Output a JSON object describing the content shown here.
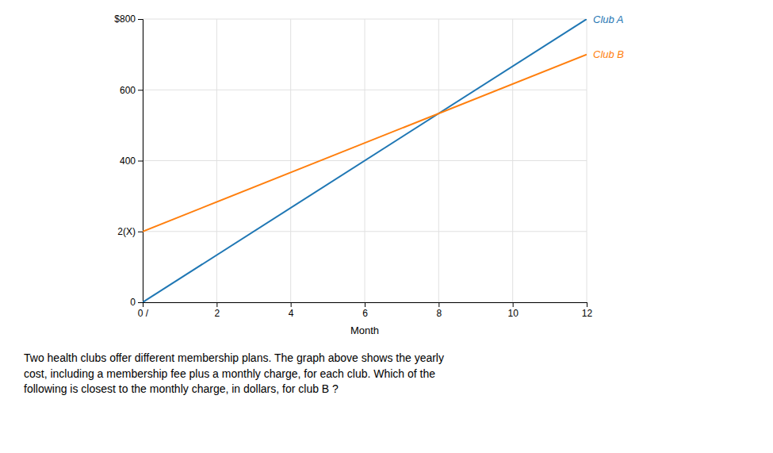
{
  "chart_data": {
    "type": "line",
    "xlabel": "Month",
    "x": [
      0,
      12
    ],
    "series": [
      {
        "name": "Club A",
        "values": [
          0,
          800
        ]
      },
      {
        "name": "Club B",
        "values": [
          200,
          700
        ]
      }
    ],
    "xlim": [
      0,
      12
    ],
    "ylim": [
      0,
      800
    ],
    "xticks": [
      {
        "value": 0,
        "label": "0 /"
      },
      2,
      4,
      6,
      8,
      10,
      12
    ],
    "yticks": [
      0,
      {
        "value": 200,
        "label": "2(X)"
      },
      400,
      600,
      {
        "value": 800,
        "label": "$800"
      }
    ],
    "grid": true,
    "annotations": [
      "Two health clubs offer different membership plans. The graph above shows the yearly\ncost, including a membership fee plus a monthly charge, for each club. Which of the\nfollowing is closest to the monthly charge, in dollars, for club B ?"
    ]
  }
}
